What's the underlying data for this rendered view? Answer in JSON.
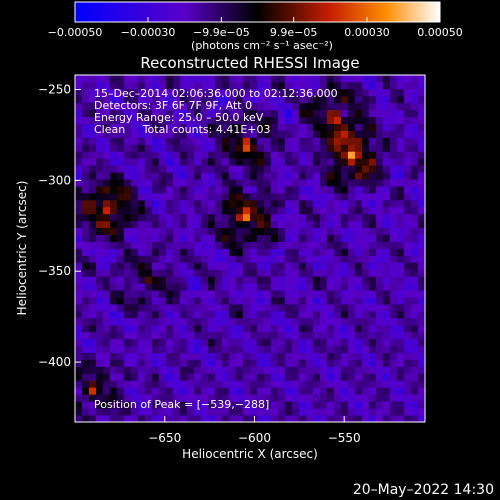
{
  "chart_data": {
    "type": "heatmap",
    "title": "Reconstructed RHESSI Image",
    "xlabel": "Heliocentric X (arcsec)",
    "ylabel": "Heliocentric Y (arcsec)",
    "xlim": [
      -700,
      -505
    ],
    "ylim": [
      -433,
      -242
    ],
    "x_ticks": [
      -650,
      -600,
      -550
    ],
    "y_ticks": [
      -250,
      -300,
      -350,
      -400
    ],
    "x_tick_labels": [
      "−650",
      "−600",
      "−550"
    ],
    "y_tick_labels": [
      "−250",
      "−300",
      "−350",
      "−400"
    ],
    "colorbar": {
      "range": [
        -0.0005,
        0.0005
      ],
      "tick_values": [
        -0.0005,
        -0.0003,
        -9.9e-05,
        9.9e-05,
        0.0003,
        0.0005
      ],
      "tick_labels": [
        "−0.00050",
        "−0.00030",
        "−9.9e−05",
        "9.9e−05",
        "0.00030",
        "0.00050"
      ],
      "unit_label": "(photons cm⁻² s⁻¹ asec⁻²)"
    },
    "info_lines": [
      "15–Dec–2014 02:06:36.000 to 02:12:36.000",
      "Detectors: 3F 6F 7F 9F, Att 0",
      "Energy Range: 25.0 – 50.0 keV",
      "Clean     Total counts: 4.41E+03"
    ],
    "peak_label": "Position of Peak = [−539,−288]",
    "peak_position": [
      -539,
      -288
    ],
    "sources": [
      {
        "x": -682,
        "y": -315,
        "amplitude": 0.00048
      },
      {
        "x": -605,
        "y": -280,
        "amplitude": 0.00036
      },
      {
        "x": -605,
        "y": -320,
        "amplitude": 0.00045
      },
      {
        "x": -545,
        "y": -287,
        "amplitude": 0.0005
      },
      {
        "x": -555,
        "y": -265,
        "amplitude": 0.00038
      },
      {
        "x": -660,
        "y": -355,
        "amplitude": 0.00022
      },
      {
        "x": -690,
        "y": -415,
        "amplitude": 0.00028
      }
    ]
  },
  "footer": {
    "timestamp": "20–May–2022 14:30"
  },
  "colors": {
    "background": "#000000",
    "text": "#ffffff"
  }
}
